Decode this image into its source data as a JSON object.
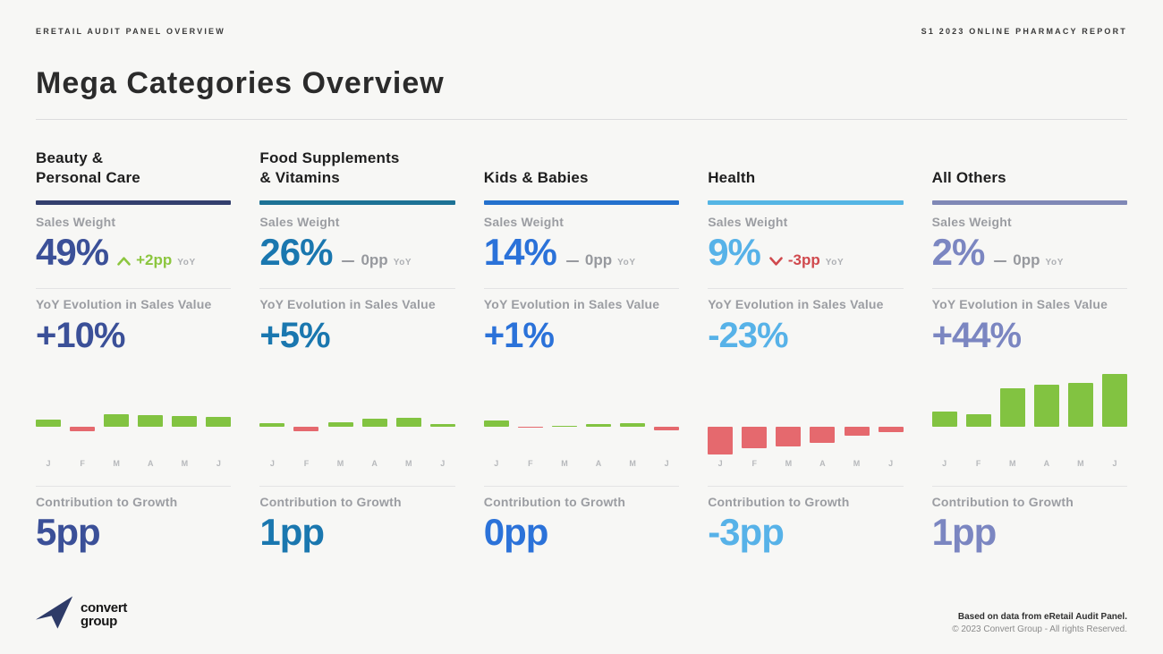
{
  "meta": {
    "eyebrow_left": "ERETAIL AUDIT PANEL OVERVIEW",
    "eyebrow_right": "S1 2023 ONLINE PHARMACY REPORT",
    "title": "Mega Categories Overview"
  },
  "section_labels": {
    "sales_weight": "Sales Weight",
    "yoy_evolution": "YoY Evolution in Sales Value",
    "contribution": "Contribution to Growth",
    "yoy_suffix": "YoY"
  },
  "months": [
    "J",
    "F",
    "M",
    "A",
    "M",
    "J"
  ],
  "palette": {
    "chart_positive": "#82c341",
    "chart_negative": "#e5696e",
    "indicator_up": "#8cc63f",
    "indicator_down": "#d0494d",
    "indicator_flat": "#97999e"
  },
  "categories": [
    {
      "title_lines": [
        "Beauty &",
        "Personal Care"
      ],
      "bar_color": "#333f6e",
      "accent": "#3b5098",
      "sales_weight": "49%",
      "indicator": {
        "direction": "up",
        "value": "+2pp"
      },
      "evolution": "+10%",
      "contribution": "5pp",
      "chart_values": [
        8,
        -5,
        14,
        13,
        12,
        11
      ]
    },
    {
      "title_lines": [
        "Food Supplements",
        "& Vitamins"
      ],
      "bar_color": "#1d7295",
      "accent": "#1a77af",
      "sales_weight": "26%",
      "indicator": {
        "direction": "flat",
        "value": "0pp"
      },
      "evolution": "+5%",
      "contribution": "1pp",
      "chart_values": [
        4,
        -5,
        5,
        9,
        10,
        3
      ]
    },
    {
      "title_lines": [
        "Kids & Babies"
      ],
      "bar_color": "#2471cd",
      "accent": "#2b72d9",
      "sales_weight": "14%",
      "indicator": {
        "direction": "flat",
        "value": "0pp"
      },
      "evolution": "+1%",
      "contribution": "0pp",
      "chart_values": [
        7,
        -1,
        0.5,
        3,
        4,
        -4
      ]
    },
    {
      "title_lines": [
        "Health"
      ],
      "bar_color": "#55b5e4",
      "accent": "#57b2e8",
      "sales_weight": "9%",
      "indicator": {
        "direction": "down",
        "value": "-3pp"
      },
      "evolution": "-23%",
      "contribution": "-3pp",
      "chart_values": [
        -31,
        -24,
        -22,
        -18,
        -10,
        -6
      ]
    },
    {
      "title_lines": [
        "All Others"
      ],
      "bar_color": "#7f88b6",
      "accent": "#7b86c1",
      "sales_weight": "2%",
      "indicator": {
        "direction": "flat",
        "value": "0pp"
      },
      "evolution": "+44%",
      "contribution": "1pp",
      "chart_values": [
        17,
        14,
        43,
        47,
        49,
        59
      ]
    }
  ],
  "chart_data": [
    {
      "type": "bar",
      "title": "Beauty & Personal Care — monthly contribution (Jan–Jun)",
      "x": [
        "J",
        "F",
        "M",
        "A",
        "M",
        "J"
      ],
      "values": [
        8,
        -5,
        14,
        13,
        12,
        11
      ],
      "positive_color": "#82c341",
      "negative_color": "#e5696e",
      "note": "relative scale, no value axis shown"
    },
    {
      "type": "bar",
      "title": "Food Supplements & Vitamins — monthly contribution (Jan–Jun)",
      "x": [
        "J",
        "F",
        "M",
        "A",
        "M",
        "J"
      ],
      "values": [
        4,
        -5,
        5,
        9,
        10,
        3
      ],
      "positive_color": "#82c341",
      "negative_color": "#e5696e",
      "note": "relative scale, no value axis shown"
    },
    {
      "type": "bar",
      "title": "Kids & Babies — monthly contribution (Jan–Jun)",
      "x": [
        "J",
        "F",
        "M",
        "A",
        "M",
        "J"
      ],
      "values": [
        7,
        -1,
        0.5,
        3,
        4,
        -4
      ],
      "positive_color": "#82c341",
      "negative_color": "#e5696e",
      "note": "relative scale, no value axis shown"
    },
    {
      "type": "bar",
      "title": "Health — monthly contribution (Jan–Jun)",
      "x": [
        "J",
        "F",
        "M",
        "A",
        "M",
        "J"
      ],
      "values": [
        -31,
        -24,
        -22,
        -18,
        -10,
        -6
      ],
      "positive_color": "#82c341",
      "negative_color": "#e5696e",
      "note": "relative scale, no value axis shown"
    },
    {
      "type": "bar",
      "title": "All Others — monthly contribution (Jan–Jun)",
      "x": [
        "J",
        "F",
        "M",
        "A",
        "M",
        "J"
      ],
      "values": [
        17,
        14,
        43,
        47,
        49,
        59
      ],
      "positive_color": "#82c341",
      "negative_color": "#e5696e",
      "note": "relative scale, no value axis shown"
    }
  ],
  "footer": {
    "logo_line1": "convert",
    "logo_line2": "group",
    "note_source": "Based on data from eRetail Audit Panel.",
    "note_copyright": "© 2023 Convert Group - All rights Reserved."
  }
}
